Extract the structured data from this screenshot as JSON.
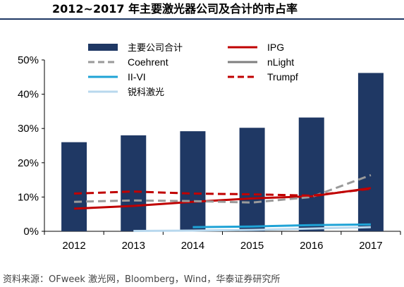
{
  "chart_data": {
    "type": "bar",
    "title": "2012~2017 年主要激光器公司及合计的市占率",
    "categories": [
      "2012",
      "2013",
      "2014",
      "2015",
      "2016",
      "2017"
    ],
    "ylim": [
      0,
      50
    ],
    "yticks": [
      "0%",
      "10%",
      "20%",
      "30%",
      "40%",
      "50%"
    ],
    "bar_series": {
      "name": "主要公司合计",
      "color": "#1f3864",
      "values": [
        26.0,
        28.0,
        29.2,
        30.2,
        33.2,
        46.2
      ]
    },
    "line_series": [
      {
        "name": "IPG",
        "color": "#c00000",
        "dash": "solid",
        "values": [
          6.6,
          7.4,
          8.6,
          9.6,
          10.2,
          12.6
        ]
      },
      {
        "name": "Coehrent",
        "color": "#9a9a9a",
        "dash": "dashed",
        "values": [
          8.6,
          9.0,
          8.8,
          8.4,
          10.0,
          16.4
        ]
      },
      {
        "name": "nLight",
        "color": "#7f7f7f",
        "dash": "solid",
        "values": [
          null,
          null,
          null,
          null,
          null,
          null
        ]
      },
      {
        "name": "II-VI",
        "color": "#1fa3d6",
        "dash": "solid",
        "values": [
          null,
          null,
          1.2,
          1.4,
          1.8,
          2.0
        ]
      },
      {
        "name": "Trumpf",
        "color": "#c00000",
        "dash": "dashed",
        "values": [
          11.0,
          11.6,
          11.0,
          10.8,
          10.4,
          12.4
        ]
      },
      {
        "name": "锐科激光",
        "color": "#b8d8ee",
        "dash": "solid",
        "values": [
          null,
          0.1,
          0.2,
          0.4,
          0.8,
          1.2
        ]
      }
    ],
    "legend_placement": "top",
    "grid": false
  },
  "source": "资料来源：OFweek 激光网，Bloomberg，Wind，华泰证券研究所"
}
